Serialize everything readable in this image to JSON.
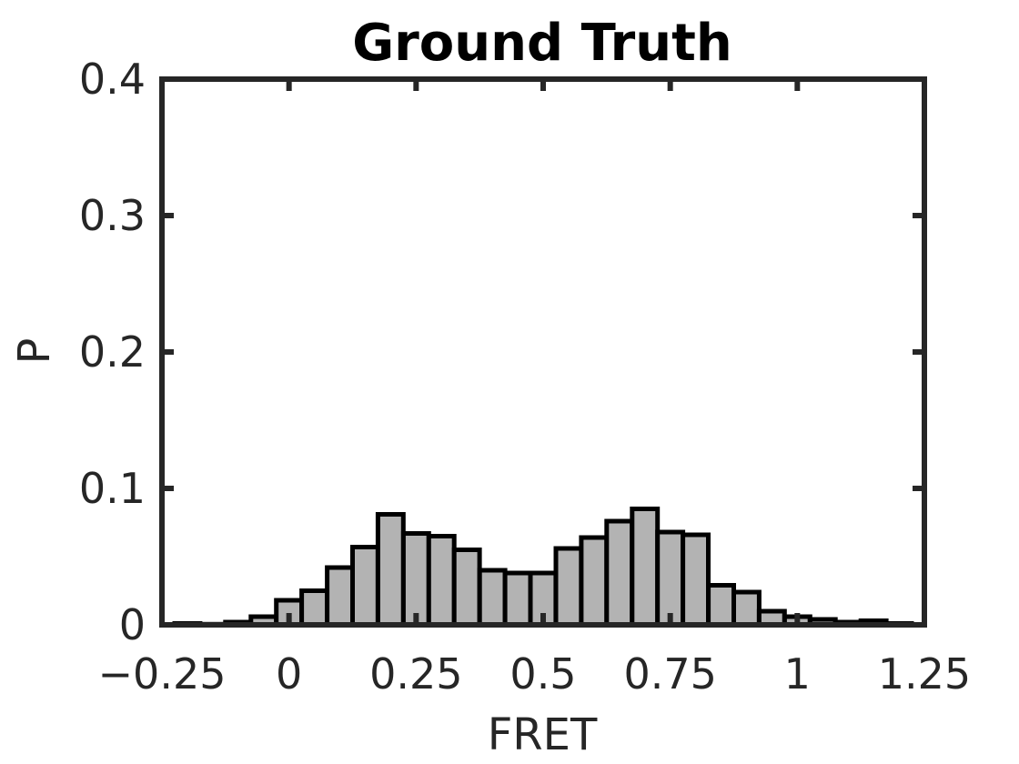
{
  "chart_data": {
    "type": "bar",
    "title": "Ground Truth",
    "xlabel": "FRET",
    "ylabel": "P",
    "xlim": [
      -0.25,
      1.25
    ],
    "ylim": [
      0,
      0.4
    ],
    "xticks": [
      -0.25,
      0,
      0.25,
      0.5,
      0.75,
      1,
      1.25
    ],
    "xtick_labels": [
      "−0.25",
      "0",
      "0.25",
      "0.5",
      "0.75",
      "1",
      "1.25"
    ],
    "yticks": [
      0,
      0.1,
      0.2,
      0.3,
      0.4
    ],
    "ytick_labels": [
      "0",
      "0.1",
      "0.2",
      "0.3",
      "0.4"
    ],
    "bin_width": 0.05,
    "bar_fill": "#b3b3b3",
    "bar_edge": "#000000",
    "x": [
      -0.2,
      -0.15,
      -0.1,
      -0.05,
      0.0,
      0.05,
      0.1,
      0.15,
      0.2,
      0.25,
      0.3,
      0.35,
      0.4,
      0.45,
      0.5,
      0.55,
      0.6,
      0.65,
      0.7,
      0.75,
      0.8,
      0.85,
      0.9,
      0.95,
      1.0,
      1.05,
      1.1,
      1.15,
      1.2
    ],
    "values": [
      0.001,
      0.0005,
      0.002,
      0.006,
      0.018,
      0.025,
      0.042,
      0.057,
      0.081,
      0.067,
      0.065,
      0.055,
      0.04,
      0.038,
      0.038,
      0.056,
      0.064,
      0.076,
      0.085,
      0.068,
      0.066,
      0.029,
      0.024,
      0.01,
      0.006,
      0.004,
      0.002,
      0.003,
      0.001
    ],
    "grid": false
  }
}
